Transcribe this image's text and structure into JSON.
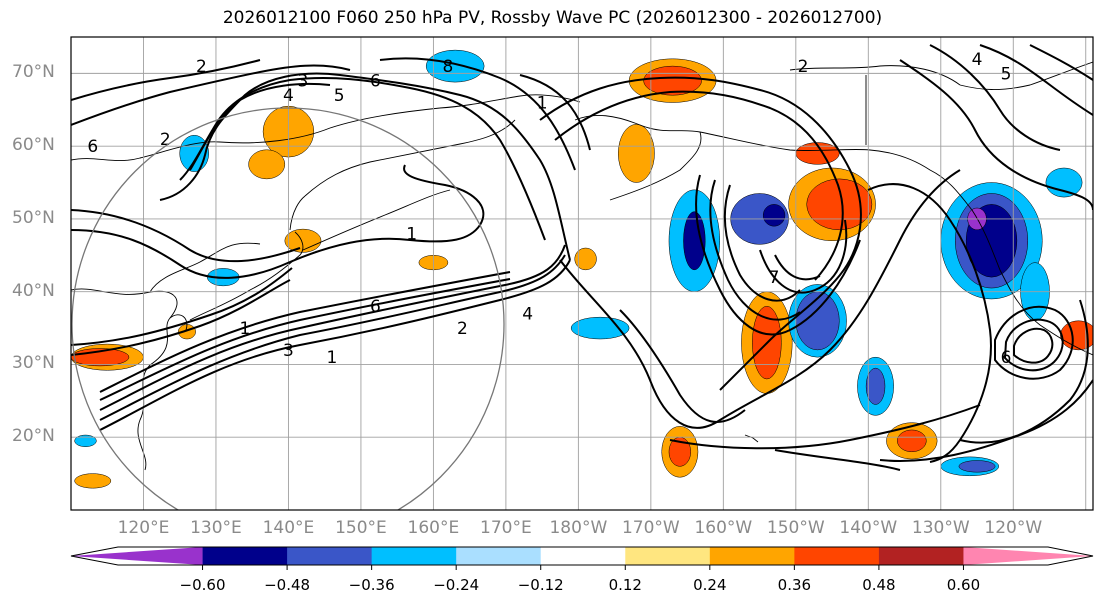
{
  "title": "2026012100 F060 250 hPa PV, Rossby Wave PC (2026012300 - 2026012700)",
  "lat_labels": [
    {
      "text": "70°N",
      "lat": 70
    },
    {
      "text": "60°N",
      "lat": 60
    },
    {
      "text": "50°N",
      "lat": 50
    },
    {
      "text": "40°N",
      "lat": 40
    },
    {
      "text": "30°N",
      "lat": 30
    },
    {
      "text": "20°N",
      "lat": 20
    }
  ],
  "lon_labels": [
    {
      "text": "120°E",
      "lon": 120
    },
    {
      "text": "130°E",
      "lon": 130
    },
    {
      "text": "140°E",
      "lon": 140
    },
    {
      "text": "150°E",
      "lon": 150
    },
    {
      "text": "160°E",
      "lon": 160
    },
    {
      "text": "170°E",
      "lon": 170
    },
    {
      "text": "180°W",
      "lon": 180
    },
    {
      "text": "170°W",
      "lon": 190
    },
    {
      "text": "160°W",
      "lon": 200
    },
    {
      "text": "150°W",
      "lon": 210
    },
    {
      "text": "140°W",
      "lon": 220
    },
    {
      "text": "130°W",
      "lon": 230
    },
    {
      "text": "120°W",
      "lon": 240
    }
  ],
  "map_extent": {
    "lon_min": 110,
    "lon_max": 251,
    "lat_min": 10,
    "lat_max": 75
  },
  "colorbar": {
    "ticks": [
      "−0.60",
      "−0.48",
      "−0.36",
      "−0.24",
      "−0.12",
      "0.12",
      "0.24",
      "0.36",
      "0.48",
      "0.60"
    ],
    "colors": [
      "#9932cc",
      "#00008b",
      "#3a56c8",
      "#00bfff",
      "#aadfff",
      "#ffffff",
      "#ffe680",
      "#ffa500",
      "#ff4500",
      "#b22222",
      "#ff85b0"
    ],
    "extend": "both"
  },
  "contour_labels": [
    {
      "text": "2",
      "lon": 128,
      "lat": 71
    },
    {
      "text": "3",
      "lon": 142,
      "lat": 69
    },
    {
      "text": "4",
      "lon": 140,
      "lat": 67
    },
    {
      "text": "5",
      "lon": 147,
      "lat": 67
    },
    {
      "text": "6",
      "lon": 152,
      "lat": 69
    },
    {
      "text": "6",
      "lon": 113,
      "lat": 60
    },
    {
      "text": "2",
      "lon": 123,
      "lat": 61
    },
    {
      "text": "8",
      "lon": 162,
      "lat": 71
    },
    {
      "text": "1",
      "lon": 175,
      "lat": 66
    },
    {
      "text": "2",
      "lon": 211,
      "lat": 71
    },
    {
      "text": "4",
      "lon": 235,
      "lat": 72
    },
    {
      "text": "5",
      "lon": 239,
      "lat": 70
    },
    {
      "text": "1",
      "lon": 157,
      "lat": 48
    },
    {
      "text": "6",
      "lon": 152,
      "lat": 38
    },
    {
      "text": "4",
      "lon": 173,
      "lat": 37
    },
    {
      "text": "2",
      "lon": 164,
      "lat": 35
    },
    {
      "text": "1",
      "lon": 134,
      "lat": 35
    },
    {
      "text": "3",
      "lon": 140,
      "lat": 32
    },
    {
      "text": "1",
      "lon": 146,
      "lat": 31
    },
    {
      "text": "7",
      "lon": 207,
      "lat": 42
    },
    {
      "text": "6",
      "lon": 239,
      "lat": 31
    }
  ],
  "shading": [
    {
      "lon": 127,
      "lat": 59,
      "rx": 2,
      "ry": 2.5,
      "c": "#00bfff"
    },
    {
      "lon": 140,
      "lat": 62,
      "rx": 3.5,
      "ry": 3.5,
      "c": "#ffa500"
    },
    {
      "lon": 137,
      "lat": 57.5,
      "rx": 2.5,
      "ry": 2,
      "c": "#ffa500"
    },
    {
      "lon": 163,
      "lat": 71,
      "rx": 4,
      "ry": 2.2,
      "c": "#00bfff"
    },
    {
      "lon": 193,
      "lat": 69,
      "rx": 6,
      "ry": 3,
      "c": "#ffa500"
    },
    {
      "lon": 193,
      "lat": 69,
      "rx": 4,
      "ry": 2,
      "c": "#ff4500"
    },
    {
      "lon": 188,
      "lat": 59,
      "rx": 2.5,
      "ry": 4,
      "c": "#ffa500"
    },
    {
      "lon": 196,
      "lat": 47,
      "rx": 3.5,
      "ry": 7,
      "c": "#00bfff"
    },
    {
      "lon": 196,
      "lat": 47,
      "rx": 1.5,
      "ry": 4,
      "c": "#00008b"
    },
    {
      "lon": 205,
      "lat": 50,
      "rx": 4,
      "ry": 3.5,
      "c": "#3a56c8"
    },
    {
      "lon": 207,
      "lat": 50.5,
      "rx": 1.5,
      "ry": 1.5,
      "c": "#00008b"
    },
    {
      "lon": 215,
      "lat": 52,
      "rx": 6,
      "ry": 5,
      "c": "#ffa500"
    },
    {
      "lon": 216,
      "lat": 52,
      "rx": 4.5,
      "ry": 3.5,
      "c": "#ff4500"
    },
    {
      "lon": 206,
      "lat": 33,
      "rx": 3.5,
      "ry": 7,
      "c": "#ffa500"
    },
    {
      "lon": 206,
      "lat": 33,
      "rx": 2,
      "ry": 5,
      "c": "#ff4500"
    },
    {
      "lon": 213,
      "lat": 36,
      "rx": 4,
      "ry": 5,
      "c": "#00bfff"
    },
    {
      "lon": 213,
      "lat": 36,
      "rx": 3,
      "ry": 4,
      "c": "#3a56c8"
    },
    {
      "lon": 221,
      "lat": 27,
      "rx": 2.5,
      "ry": 4,
      "c": "#00bfff"
    },
    {
      "lon": 221,
      "lat": 27,
      "rx": 1.3,
      "ry": 2.5,
      "c": "#3a56c8"
    },
    {
      "lon": 237,
      "lat": 47,
      "rx": 7,
      "ry": 8,
      "c": "#00bfff"
    },
    {
      "lon": 237,
      "lat": 47,
      "rx": 5,
      "ry": 6.5,
      "c": "#3a56c8"
    },
    {
      "lon": 237,
      "lat": 47,
      "rx": 3.5,
      "ry": 5,
      "c": "#00008b"
    },
    {
      "lon": 235,
      "lat": 50,
      "rx": 1.3,
      "ry": 1.5,
      "c": "#9932cc"
    },
    {
      "lon": 194,
      "lat": 18,
      "rx": 2.5,
      "ry": 3.5,
      "c": "#ffa500"
    },
    {
      "lon": 194,
      "lat": 18,
      "rx": 1.5,
      "ry": 2,
      "c": "#ff4500"
    },
    {
      "lon": 226,
      "lat": 19.5,
      "rx": 3.5,
      "ry": 2.5,
      "c": "#ffa500"
    },
    {
      "lon": 226,
      "lat": 19.5,
      "rx": 2,
      "ry": 1.5,
      "c": "#ff4500"
    },
    {
      "lon": 234,
      "lat": 16,
      "rx": 4,
      "ry": 1.3,
      "c": "#00bfff"
    },
    {
      "lon": 235,
      "lat": 16,
      "rx": 2.5,
      "ry": 0.8,
      "c": "#3a56c8"
    },
    {
      "lon": 115,
      "lat": 31,
      "rx": 5,
      "ry": 1.8,
      "c": "#ffa500"
    },
    {
      "lon": 114,
      "lat": 31,
      "rx": 4,
      "ry": 1.2,
      "c": "#ff4500"
    },
    {
      "lon": 113,
      "lat": 14,
      "rx": 2.5,
      "ry": 1,
      "c": "#ffa500"
    },
    {
      "lon": 112,
      "lat": 19.5,
      "rx": 1.5,
      "ry": 0.8,
      "c": "#00bfff"
    },
    {
      "lon": 142,
      "lat": 47,
      "rx": 2.5,
      "ry": 1.6,
      "c": "#ffa500"
    },
    {
      "lon": 160,
      "lat": 44,
      "rx": 2,
      "ry": 1,
      "c": "#ffa500"
    },
    {
      "lon": 181,
      "lat": 44.5,
      "rx": 1.5,
      "ry": 1.5,
      "c": "#ffa500"
    },
    {
      "lon": 183,
      "lat": 35,
      "rx": 4,
      "ry": 1.5,
      "c": "#00bfff"
    },
    {
      "lon": 131,
      "lat": 42,
      "rx": 2.2,
      "ry": 1.2,
      "c": "#00bfff"
    },
    {
      "lon": 126,
      "lat": 34.5,
      "rx": 1.2,
      "ry": 1,
      "c": "#ffa500"
    },
    {
      "lon": 249,
      "lat": 34,
      "rx": 2.5,
      "ry": 2,
      "c": "#ff4500"
    },
    {
      "lon": 247,
      "lat": 55,
      "rx": 2.5,
      "ry": 2,
      "c": "#00bfff"
    },
    {
      "lon": 213,
      "lat": 59,
      "rx": 3,
      "ry": 1.5,
      "c": "#ff4500"
    },
    {
      "lon": 243,
      "lat": 40,
      "rx": 2,
      "ry": 4,
      "c": "#00bfff"
    }
  ]
}
